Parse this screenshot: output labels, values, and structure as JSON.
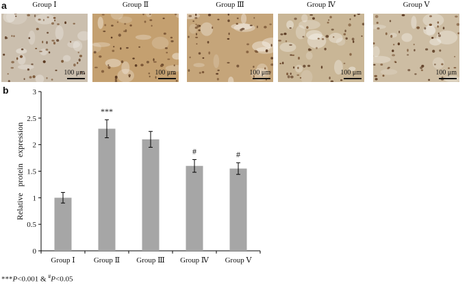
{
  "panel_a": {
    "letter": "a",
    "images": [
      {
        "title": "Group Ⅰ",
        "scale": "100 μm",
        "tone": "#cbbfae"
      },
      {
        "title": "Group Ⅱ",
        "scale": "100 μm",
        "tone": "#c4a070"
      },
      {
        "title": "Group Ⅲ",
        "scale": "100 μm",
        "tone": "#c5a57a"
      },
      {
        "title": "Group Ⅳ",
        "scale": "100 μm",
        "tone": "#c9b696"
      },
      {
        "title": "Group Ⅴ",
        "scale": "100 μm",
        "tone": "#cdbda3"
      }
    ]
  },
  "panel_b": {
    "letter": "b"
  },
  "chart_data": {
    "type": "bar",
    "categories": [
      "Group Ⅰ",
      "Group Ⅱ",
      "Group Ⅲ",
      "Group Ⅳ",
      "Group Ⅴ"
    ],
    "values": [
      1.0,
      2.3,
      2.1,
      1.6,
      1.55
    ],
    "errors": [
      0.1,
      0.17,
      0.15,
      0.12,
      0.11
    ],
    "significance": [
      "",
      "***",
      "",
      "#",
      "#"
    ],
    "ylabel": "Relative   protein   expression",
    "ylim": [
      0,
      3
    ],
    "yticks": [
      0,
      0.5,
      1,
      1.5,
      2,
      2.5,
      3
    ],
    "ytick_labels": [
      "0",
      "0.5",
      "1",
      "1.5",
      "2",
      "2.5",
      "3"
    ],
    "bar_color": "#a6a6a6",
    "grid": false
  },
  "footnote": {
    "stars": "***",
    "p1": "P",
    "t1": "<0.001 & ",
    "hash": "#",
    "p2": "P",
    "t2": "<0.05"
  }
}
